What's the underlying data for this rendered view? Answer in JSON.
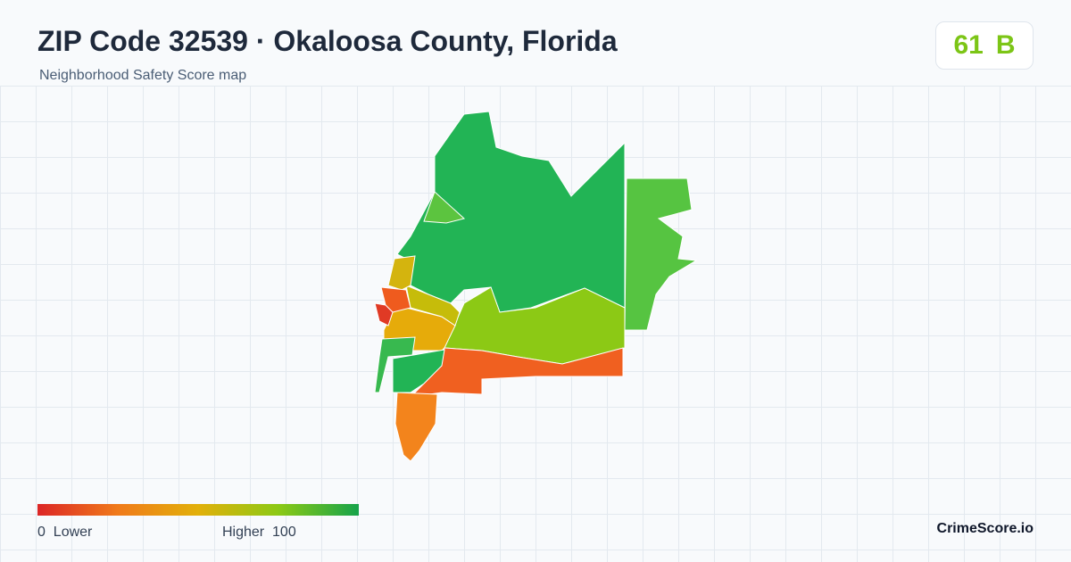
{
  "header": {
    "title": "ZIP Code 32539 · Okaloosa County, Florida",
    "subtitle": "Neighborhood Safety Score map"
  },
  "score": {
    "value": 61,
    "grade": "B"
  },
  "legend": {
    "min": 0,
    "min_label": "Lower",
    "max_label": "Higher",
    "max": 100
  },
  "brand": "CrimeScore.io"
}
